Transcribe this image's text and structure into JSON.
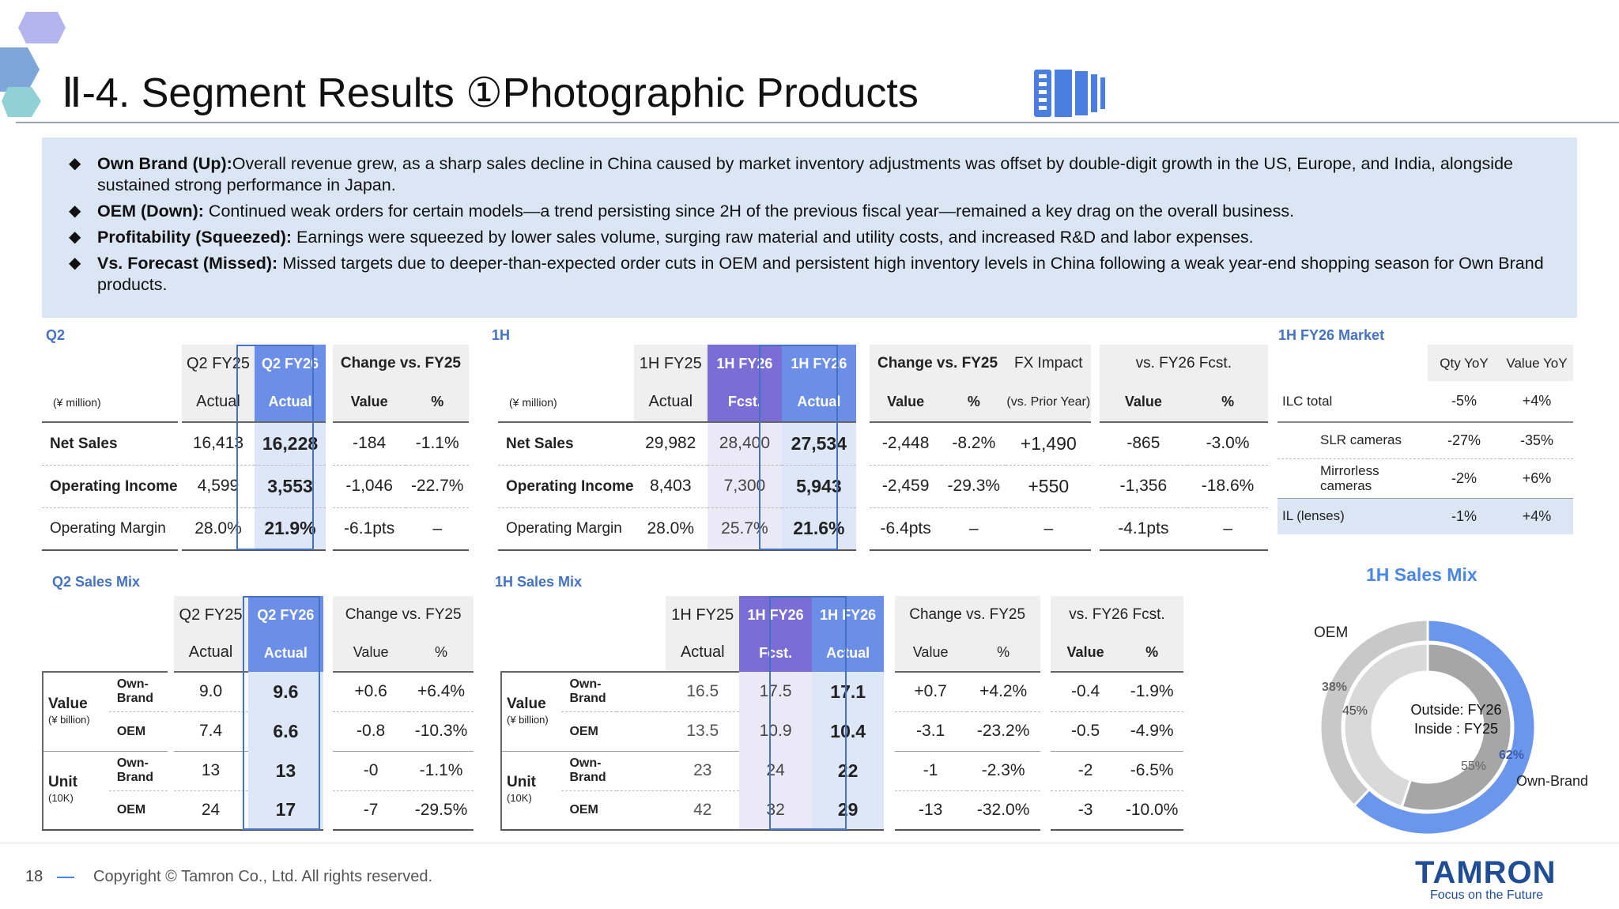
{
  "title": "Ⅱ-4. Segment Results ①Photographic Products",
  "bullets": [
    {
      "label": "Own Brand (Up):",
      "text": "Overall revenue grew, as a sharp sales decline in China caused by market inventory adjustments was offset by double-digit growth in the US, Europe, and India, alongside sustained strong performance in Japan."
    },
    {
      "label": "OEM (Down):",
      "text": " Continued weak orders for certain models—a trend persisting since 2H of the previous fiscal year—remained a key drag on the overall business."
    },
    {
      "label": "Profitability (Squeezed):",
      "text": " Earnings were squeezed by lower sales volume, surging raw material and utility costs, and increased R&D and labor expenses."
    },
    {
      "label": "Vs. Forecast (Missed):",
      "text": " Missed targets due to deeper-than-expected order cuts in OEM and persistent high inventory levels in China following a weak year-end shopping season for Own Brand products."
    }
  ],
  "q2": {
    "section": "Q2",
    "unit": "(¥ million)",
    "h": {
      "fy25": "Q2 FY25",
      "fy26": "Q2 FY26",
      "chg": "Change vs. FY25",
      "actual": "Actual",
      "value": "Value",
      "pct": "%"
    },
    "rows": [
      {
        "label": "Net Sales",
        "fy25": "16,413",
        "fy26": "16,228",
        "value": "-184",
        "pct": "-1.1%"
      },
      {
        "label": "Operating Income",
        "fy25": "4,599",
        "fy26": "3,553",
        "value": "-1,046",
        "pct": "-22.7%"
      },
      {
        "label": "Operating Margin",
        "fy25": "28.0%",
        "fy26": "21.9%",
        "value": "-6.1pts",
        "pct": "–"
      }
    ]
  },
  "h1": {
    "section": "1H",
    "unit": "(¥ million)",
    "h": {
      "fy25": "1H FY25",
      "fy26f": "1H FY26",
      "fy26": "1H FY26",
      "actual": "Actual",
      "fcst": "Fcst.",
      "chg": "Change vs. FY25",
      "fx": "FX Impact",
      "fx_sub": "(vs. Prior Year)",
      "vsf": "vs. FY26 Fcst.",
      "value": "Value",
      "pct": "%"
    },
    "rows": [
      {
        "label": "Net Sales",
        "fy25": "29,982",
        "fcst": "28,400",
        "fy26": "27,534",
        "value": "-2,448",
        "pct": "-8.2%",
        "fx": "+1,490",
        "fv": "-865",
        "fp": "-3.0%"
      },
      {
        "label": "Operating Income",
        "fy25": "8,403",
        "fcst": "7,300",
        "fy26": "5,943",
        "value": "-2,459",
        "pct": "-29.3%",
        "fx": "+550",
        "fv": "-1,356",
        "fp": "-18.6%"
      },
      {
        "label": "Operating Margin",
        "fy25": "28.0%",
        "fcst": "25.7%",
        "fy26": "21.6%",
        "value": "-6.4pts",
        "pct": "–",
        "fx": "–",
        "fv": "-4.1pts",
        "fp": "–"
      }
    ]
  },
  "market": {
    "section": "1H FY26 Market",
    "h": {
      "qty": "Qty YoY",
      "val": "Value YoY"
    },
    "rows": [
      {
        "label": "ILC total",
        "qty": "-5%",
        "val": "+4%"
      },
      {
        "label": "SLR cameras",
        "qty": "-27%",
        "val": "-35%"
      },
      {
        "label": "Mirrorless cameras",
        "qty": "-2%",
        "val": "+6%"
      },
      {
        "label": "IL (lenses)",
        "qty": "-1%",
        "val": "+4%"
      }
    ]
  },
  "q2mix": {
    "section": "Q2 Sales Mix",
    "h": {
      "fy25": "Q2 FY25",
      "fy26": "Q2 FY26",
      "chg": "Change vs. FY25",
      "actual": "Actual",
      "value": "Value",
      "pct": "%"
    },
    "groups": [
      {
        "label": "Value",
        "unit": "(¥ billion)",
        "rows": [
          {
            "sub": "Own-Brand",
            "fy25": "9.0",
            "fy26": "9.6",
            "value": "+0.6",
            "pct": "+6.4%"
          },
          {
            "sub": "OEM",
            "fy25": "7.4",
            "fy26": "6.6",
            "value": "-0.8",
            "pct": "-10.3%"
          }
        ]
      },
      {
        "label": "Unit",
        "unit": "(10K)",
        "rows": [
          {
            "sub": "Own-Brand",
            "fy25": "13",
            "fy26": "13",
            "value": "-0",
            "pct": "-1.1%"
          },
          {
            "sub": "OEM",
            "fy25": "24",
            "fy26": "17",
            "value": "-7",
            "pct": "-29.5%"
          }
        ]
      }
    ]
  },
  "h1mix": {
    "section": "1H Sales Mix",
    "h": {
      "fy25": "1H FY25",
      "fy26f": "1H FY26",
      "fy26": "1H FY26",
      "actual": "Actual",
      "fcst": "Fcst.",
      "chg": "Change vs. FY25",
      "vsf": "vs. FY26 Fcst.",
      "value": "Value",
      "pct": "%"
    },
    "groups": [
      {
        "label": "Value",
        "unit": "(¥ billion)",
        "rows": [
          {
            "sub": "Own-Brand",
            "fy25": "16.5",
            "fcst": "17.5",
            "fy26": "17.1",
            "value": "+0.7",
            "pct": "+4.2%",
            "fv": "-0.4",
            "fp": "-1.9%"
          },
          {
            "sub": "OEM",
            "fy25": "13.5",
            "fcst": "10.9",
            "fy26": "10.4",
            "value": "-3.1",
            "pct": "-23.2%",
            "fv": "-0.5",
            "fp": "-4.9%"
          }
        ]
      },
      {
        "label": "Unit",
        "unit": "(10K)",
        "rows": [
          {
            "sub": "Own-Brand",
            "fy25": "23",
            "fcst": "24",
            "fy26": "22",
            "value": "-1",
            "pct": "-2.3%",
            "fv": "-2",
            "fp": "-6.5%"
          },
          {
            "sub": "OEM",
            "fy25": "42",
            "fcst": "32",
            "fy26": "29",
            "value": "-13",
            "pct": "-32.0%",
            "fv": "-3",
            "fp": "-10.0%"
          }
        ]
      }
    ]
  },
  "chart_data": {
    "type": "pie",
    "title": "1H Sales Mix",
    "center_label": "Outside: FY26\nInside : FY25",
    "center_line1": "Outside: FY26",
    "center_line2": "Inside : FY25",
    "categories": [
      "Own-Brand",
      "OEM"
    ],
    "series": [
      {
        "name": "FY26",
        "values": [
          62,
          38
        ],
        "labels": [
          "62%",
          "38%"
        ]
      },
      {
        "name": "FY25",
        "values": [
          55,
          45
        ],
        "labels": [
          "55%",
          "45%"
        ]
      }
    ],
    "colors": {
      "own_outer": "#6b96ee",
      "oem_outer": "#c8c8c8",
      "own_inner": "#a6a6a6",
      "oem_inner": "#d9d9d9"
    },
    "legend_labels": {
      "oem": "OEM",
      "own": "Own-Brand"
    }
  },
  "footer": {
    "page": "18",
    "copyright": "Copyright © Tamron Co., Ltd. All rights reserved.",
    "logo": "TAMRON",
    "tagline": "Focus on the Future"
  }
}
